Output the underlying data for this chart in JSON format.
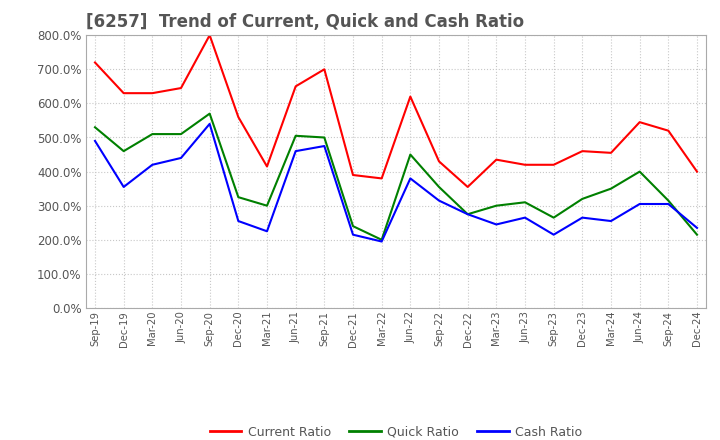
{
  "title": "[6257]  Trend of Current, Quick and Cash Ratio",
  "x_labels": [
    "Sep-19",
    "Dec-19",
    "Mar-20",
    "Jun-20",
    "Sep-20",
    "Dec-20",
    "Mar-21",
    "Jun-21",
    "Sep-21",
    "Dec-21",
    "Mar-22",
    "Jun-22",
    "Sep-22",
    "Dec-22",
    "Mar-23",
    "Jun-23",
    "Sep-23",
    "Dec-23",
    "Mar-24",
    "Jun-24",
    "Sep-24",
    "Dec-24"
  ],
  "current_ratio": [
    720,
    630,
    630,
    645,
    800,
    560,
    415,
    650,
    700,
    390,
    380,
    620,
    430,
    355,
    435,
    420,
    420,
    460,
    455,
    545,
    520,
    400
  ],
  "quick_ratio": [
    530,
    460,
    510,
    510,
    570,
    325,
    300,
    505,
    500,
    240,
    200,
    450,
    355,
    275,
    300,
    310,
    265,
    320,
    350,
    400,
    315,
    215
  ],
  "cash_ratio": [
    490,
    355,
    420,
    440,
    540,
    255,
    225,
    460,
    475,
    215,
    195,
    380,
    315,
    275,
    245,
    265,
    215,
    265,
    255,
    305,
    305,
    235
  ],
  "line_colors": [
    "#ff0000",
    "#008000",
    "#0000ff"
  ],
  "legend_labels": [
    "Current Ratio",
    "Quick Ratio",
    "Cash Ratio"
  ],
  "ylim": [
    0,
    800
  ],
  "yticks": [
    0,
    100,
    200,
    300,
    400,
    500,
    600,
    700,
    800
  ],
  "background_color": "#ffffff",
  "grid_color": "#c8c8c8",
  "title_color": "#555555",
  "title_fontsize": 12,
  "figsize": [
    7.2,
    4.4
  ],
  "dpi": 100
}
